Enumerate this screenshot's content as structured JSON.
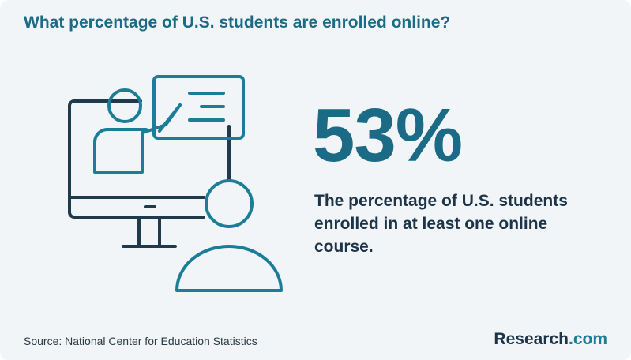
{
  "header": {
    "title": "What percentage of U.S. students are enrolled online?"
  },
  "stat": {
    "value": "53%",
    "description": [
      "The percentage of U.S. students",
      "enrolled in at least one online",
      "course."
    ]
  },
  "footer": {
    "source": "Source: National Center for Education Statistics",
    "brand": {
      "name": "Research",
      "suffix": ".com"
    }
  }
}
